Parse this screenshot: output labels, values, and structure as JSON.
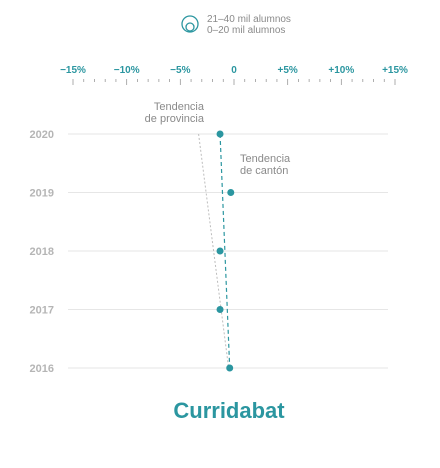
{
  "legend": {
    "items": [
      "21–40 mil alumnos",
      "0–20 mil alumnos"
    ]
  },
  "chart_data": {
    "type": "scatter",
    "title": "Curridabat",
    "xlabel": "",
    "ylabel": "",
    "xlim": [
      -15,
      15
    ],
    "x_ticks": [
      "−15%",
      "−10%",
      "−5%",
      "0",
      "+5%",
      "+10%",
      "+15%"
    ],
    "categories": [
      "2020",
      "2019",
      "2018",
      "2017",
      "2016"
    ],
    "points": [
      {
        "year": "2020",
        "x": -1.3
      },
      {
        "year": "2019",
        "x": -0.3
      },
      {
        "year": "2018",
        "x": -1.3
      },
      {
        "year": "2017",
        "x": -1.3
      },
      {
        "year": "2016",
        "x": -0.4
      }
    ],
    "trend_canton": {
      "label_line1": "Tendencia",
      "label_line2": "de cantón",
      "start": {
        "year": "2020",
        "x": -1.3
      },
      "end": {
        "year": "2016",
        "x": -0.4
      }
    },
    "trend_provincia": {
      "label_line1": "Tendencia",
      "label_line2": "de provincia",
      "start": {
        "year": "2020",
        "x": -3.3
      },
      "end": {
        "year": "2016",
        "x": -0.5
      }
    },
    "colors": {
      "accent": "#2b96a0",
      "grid": "#e6e6e6",
      "trend_provincia": "#bdbdbd"
    }
  }
}
